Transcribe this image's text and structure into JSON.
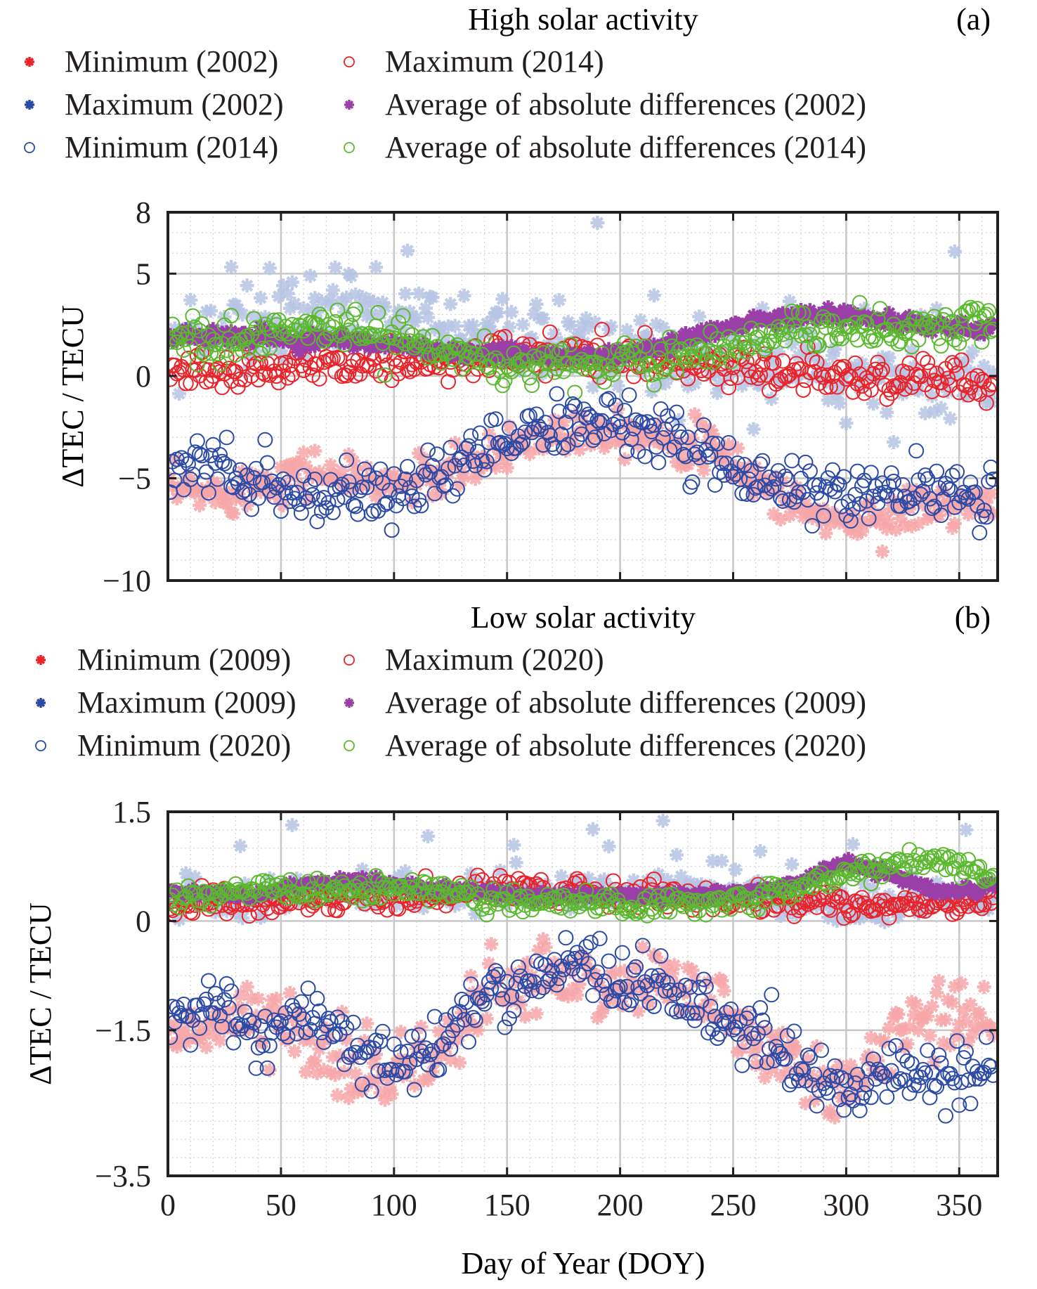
{
  "figure": {
    "xlabel": "Day of Year (DOY)",
    "colors": {
      "red": "#e8232a",
      "red_light": "#f6a6a8",
      "blue": "#2b4aa6",
      "blue_light": "#b6c3e3",
      "purple": "#9b3fa8",
      "green": "#5ab92e",
      "grid_major": "#c8c8c8",
      "grid_minor": "#d4d4d4",
      "axis": "#231f20"
    }
  },
  "chart_data": [
    {
      "id": "a",
      "type": "scatter",
      "title": "High solar activity",
      "panel_label": "(a)",
      "xlabel": "",
      "ylabel": "ΔTEC / TECU",
      "xlim": [
        0,
        367
      ],
      "ylim": [
        -10,
        8
      ],
      "xticks": [
        0,
        50,
        100,
        150,
        200,
        250,
        300,
        350
      ],
      "yticks": [
        8,
        5,
        0,
        -5,
        -10
      ],
      "ytick_labels": [
        "8",
        "5",
        "0",
        "−5",
        "−10"
      ],
      "grid": true,
      "legend": [
        {
          "label": "Minimum (2002)",
          "marker": "asterisk",
          "color": "red"
        },
        {
          "label": "Maximum (2014)",
          "marker": "circle",
          "color": "red"
        },
        {
          "label": "Maximum (2002)",
          "marker": "asterisk",
          "color": "blue"
        },
        {
          "label": "Average of absolute differences (2002)",
          "marker": "asterisk",
          "color": "purple"
        },
        {
          "label": "Minimum (2014)",
          "marker": "circle",
          "color": "blue"
        },
        {
          "label": "Average of absolute differences (2014)",
          "marker": "circle",
          "color": "green"
        }
      ],
      "series": [
        {
          "name": "Minimum (2002)",
          "marker": "asterisk",
          "color": "red_light",
          "x": [
            0,
            20,
            40,
            60,
            80,
            100,
            120,
            140,
            160,
            180,
            200,
            220,
            240,
            260,
            280,
            300,
            320,
            340,
            365
          ],
          "y": [
            -5.6,
            -5.8,
            -5.2,
            -4.6,
            -5.0,
            -5.3,
            -4.9,
            -4.2,
            -3.0,
            -2.6,
            -2.5,
            -3.0,
            -3.6,
            -5.0,
            -6.5,
            -7.2,
            -6.8,
            -6.3,
            -6.5
          ]
        },
        {
          "name": "Maximum (2014)",
          "marker": "circle",
          "color": "red",
          "x": [
            0,
            20,
            40,
            60,
            80,
            100,
            120,
            140,
            160,
            180,
            200,
            220,
            240,
            260,
            280,
            300,
            320,
            340,
            365
          ],
          "y": [
            0.1,
            0.2,
            0.2,
            0.5,
            0.7,
            0.8,
            0.7,
            1.0,
            0.8,
            0.9,
            0.8,
            0.7,
            0.6,
            0.4,
            0.2,
            0.0,
            -0.1,
            -0.2,
            -0.3
          ]
        },
        {
          "name": "Maximum (2002)",
          "marker": "asterisk",
          "color": "blue_light",
          "x": [
            0,
            20,
            40,
            60,
            80,
            100,
            120,
            140,
            160,
            180,
            200,
            220,
            240,
            260,
            280,
            300,
            320,
            340,
            365
          ],
          "y": [
            1.6,
            2.0,
            2.4,
            3.0,
            3.2,
            2.8,
            2.2,
            1.8,
            1.6,
            1.5,
            1.1,
            1.0,
            0.6,
            0.4,
            0.2,
            0.0,
            -0.1,
            -0.2,
            -0.3
          ]
        },
        {
          "name": "Average of absolute differences (2002)",
          "marker": "asterisk",
          "color": "purple",
          "x": [
            0,
            20,
            40,
            60,
            80,
            100,
            120,
            140,
            160,
            180,
            200,
            220,
            240,
            260,
            280,
            300,
            320,
            340,
            365
          ],
          "y": [
            2.0,
            2.0,
            1.9,
            1.7,
            1.7,
            1.5,
            1.2,
            1.1,
            1.0,
            0.9,
            1.0,
            1.5,
            2.2,
            2.6,
            3.0,
            3.0,
            2.7,
            2.4,
            2.3
          ]
        },
        {
          "name": "Minimum (2014)",
          "marker": "circle",
          "color": "blue",
          "x": [
            0,
            20,
            40,
            60,
            80,
            100,
            120,
            140,
            160,
            180,
            200,
            220,
            240,
            260,
            280,
            300,
            320,
            340,
            365
          ],
          "y": [
            -4.6,
            -4.2,
            -5.2,
            -6.6,
            -5.6,
            -5.6,
            -5.2,
            -3.6,
            -2.8,
            -2.3,
            -2.2,
            -3.0,
            -4.0,
            -5.2,
            -5.6,
            -5.6,
            -5.3,
            -5.4,
            -6.0
          ]
        },
        {
          "name": "Average of absolute differences (2014)",
          "marker": "circle",
          "color": "green",
          "x": [
            0,
            20,
            40,
            60,
            80,
            100,
            120,
            140,
            160,
            180,
            200,
            220,
            240,
            260,
            280,
            300,
            320,
            340,
            365
          ],
          "y": [
            1.7,
            1.6,
            2.0,
            2.5,
            2.2,
            2.0,
            1.4,
            0.8,
            0.6,
            0.6,
            0.7,
            0.8,
            1.3,
            1.8,
            2.2,
            2.4,
            2.0,
            2.4,
            2.5
          ]
        }
      ]
    },
    {
      "id": "b",
      "type": "scatter",
      "title": "Low solar activity",
      "panel_label": "(b)",
      "xlabel": "Day of Year (DOY)",
      "ylabel": "ΔTEC / TECU",
      "xlim": [
        0,
        367
      ],
      "ylim": [
        -3.5,
        1.5
      ],
      "xticks": [
        0,
        50,
        100,
        150,
        200,
        250,
        300,
        350
      ],
      "yticks": [
        1.5,
        0,
        -1.5,
        -3.5
      ],
      "ytick_labels": [
        "1.5",
        "0",
        "−1.5",
        "−3.5"
      ],
      "grid": true,
      "legend": [
        {
          "label": "Minimum (2009)",
          "marker": "asterisk",
          "color": "red"
        },
        {
          "label": "Maximum (2020)",
          "marker": "circle",
          "color": "red"
        },
        {
          "label": "Maximum (2009)",
          "marker": "asterisk",
          "color": "blue"
        },
        {
          "label": "Average of absolute differences (2009)",
          "marker": "asterisk",
          "color": "purple"
        },
        {
          "label": "Minimum (2020)",
          "marker": "circle",
          "color": "blue"
        },
        {
          "label": "Average of absolute differences (2020)",
          "marker": "circle",
          "color": "green"
        }
      ],
      "series": [
        {
          "name": "Minimum (2009)",
          "marker": "asterisk",
          "color": "red_light",
          "x": [
            0,
            20,
            40,
            60,
            80,
            100,
            120,
            140,
            160,
            180,
            200,
            220,
            240,
            260,
            280,
            300,
            320,
            340,
            365
          ],
          "y": [
            -1.7,
            -1.4,
            -1.3,
            -1.6,
            -2.0,
            -2.1,
            -1.8,
            -1.0,
            -0.9,
            -0.8,
            -0.8,
            -0.9,
            -1.1,
            -1.6,
            -2.0,
            -2.5,
            -1.6,
            -1.2,
            -1.5
          ]
        },
        {
          "name": "Maximum (2020)",
          "marker": "circle",
          "color": "red",
          "x": [
            0,
            20,
            40,
            60,
            80,
            100,
            120,
            140,
            160,
            180,
            200,
            220,
            240,
            260,
            280,
            300,
            320,
            340,
            365
          ],
          "y": [
            0.25,
            0.25,
            0.25,
            0.28,
            0.3,
            0.3,
            0.35,
            0.45,
            0.45,
            0.4,
            0.4,
            0.35,
            0.3,
            0.3,
            0.25,
            0.2,
            0.2,
            0.2,
            0.3
          ]
        },
        {
          "name": "Maximum (2009)",
          "marker": "asterisk",
          "color": "blue_light",
          "x": [
            0,
            20,
            40,
            60,
            80,
            100,
            120,
            140,
            160,
            180,
            200,
            220,
            240,
            260,
            280,
            300,
            320,
            340,
            365
          ],
          "y": [
            0.3,
            0.3,
            0.3,
            0.35,
            0.35,
            0.35,
            0.35,
            0.4,
            0.4,
            0.4,
            0.45,
            0.45,
            0.35,
            0.35,
            0.2,
            0.15,
            0.2,
            0.3,
            0.3
          ]
        },
        {
          "name": "Average of absolute differences (2009)",
          "marker": "asterisk",
          "color": "purple",
          "x": [
            0,
            20,
            40,
            60,
            80,
            100,
            120,
            140,
            160,
            180,
            200,
            220,
            240,
            260,
            280,
            300,
            320,
            340,
            365
          ],
          "y": [
            0.4,
            0.38,
            0.35,
            0.5,
            0.55,
            0.5,
            0.45,
            0.4,
            0.35,
            0.35,
            0.35,
            0.35,
            0.35,
            0.4,
            0.55,
            0.8,
            0.65,
            0.4,
            0.45
          ]
        },
        {
          "name": "Minimum (2020)",
          "marker": "circle",
          "color": "blue",
          "x": [
            0,
            20,
            40,
            60,
            80,
            100,
            120,
            140,
            160,
            180,
            200,
            220,
            240,
            260,
            280,
            300,
            320,
            340,
            365
          ],
          "y": [
            -1.3,
            -1.2,
            -1.5,
            -1.4,
            -1.7,
            -1.9,
            -1.7,
            -1.0,
            -0.8,
            -0.6,
            -0.8,
            -0.9,
            -1.3,
            -1.5,
            -2.0,
            -2.4,
            -2.1,
            -2.2,
            -2.0
          ]
        },
        {
          "name": "Average of absolute differences (2020)",
          "marker": "circle",
          "color": "green",
          "x": [
            0,
            20,
            40,
            60,
            80,
            100,
            120,
            140,
            160,
            180,
            200,
            220,
            240,
            260,
            280,
            300,
            320,
            340,
            365
          ],
          "y": [
            0.38,
            0.35,
            0.4,
            0.4,
            0.45,
            0.45,
            0.4,
            0.3,
            0.28,
            0.25,
            0.22,
            0.22,
            0.28,
            0.35,
            0.5,
            0.65,
            0.75,
            0.85,
            0.6
          ]
        }
      ]
    }
  ]
}
